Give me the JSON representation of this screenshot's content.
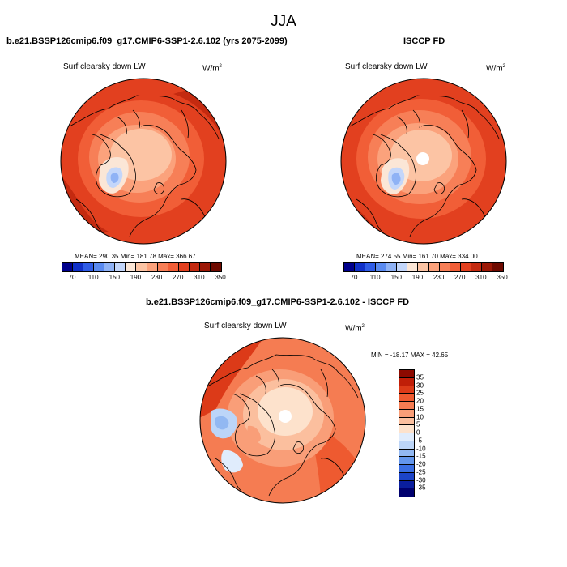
{
  "season": "JJA",
  "panels": [
    {
      "title": "b.e21.BSSP126cmip6.f09_g17.CMIP6-SSP1-2.6.102 (yrs 2075-2099)",
      "variable": "Surf clearsky down LW",
      "units_base": "W/m",
      "units_exp": "2",
      "stats": "MEAN= 290.35  Min= 181.78  Max= 366.67"
    },
    {
      "title": "ISCCP FD",
      "variable": "Surf clearsky down LW",
      "units_base": "W/m",
      "units_exp": "2",
      "stats": "MEAN= 274.55  Min= 161.70  Max= 334.00"
    },
    {
      "title": "b.e21.BSSP126cmip6.f09_g17.CMIP6-SSP1-2.6.102 - ISCCP FD",
      "variable": "Surf clearsky down LW",
      "units_base": "W/m",
      "units_exp": "2",
      "stats": "MIN = -18.17 MAX =  42.65"
    }
  ],
  "colorbar_abs": {
    "labels": [
      "70",
      "110",
      "150",
      "190",
      "230",
      "270",
      "310",
      "350"
    ],
    "colors": [
      "#00008c",
      "#1030c8",
      "#2f5ce6",
      "#5a8af0",
      "#8fb2f5",
      "#c3d6fa",
      "#fbe6d6",
      "#fcc4a4",
      "#fba27c",
      "#f77f57",
      "#f15e37",
      "#e2401f",
      "#c42a10",
      "#9c1806",
      "#6e0a00"
    ]
  },
  "colorbar_diff": {
    "labels": [
      "35",
      "30",
      "25",
      "20",
      "15",
      "10",
      "5",
      "0",
      "-5",
      "-10",
      "-15",
      "-20",
      "-25",
      "-30",
      "-35"
    ],
    "colors": [
      "#8c0a00",
      "#c01e08",
      "#dc3a18",
      "#ee5a30",
      "#f57c52",
      "#f99e78",
      "#fbbf9e",
      "#fde2cc",
      "#e0ecfc",
      "#bcd5f8",
      "#92b8f2",
      "#6396ec",
      "#3a6ee2",
      "#1c44c8",
      "#0a1e9e",
      "#00006e"
    ]
  }
}
